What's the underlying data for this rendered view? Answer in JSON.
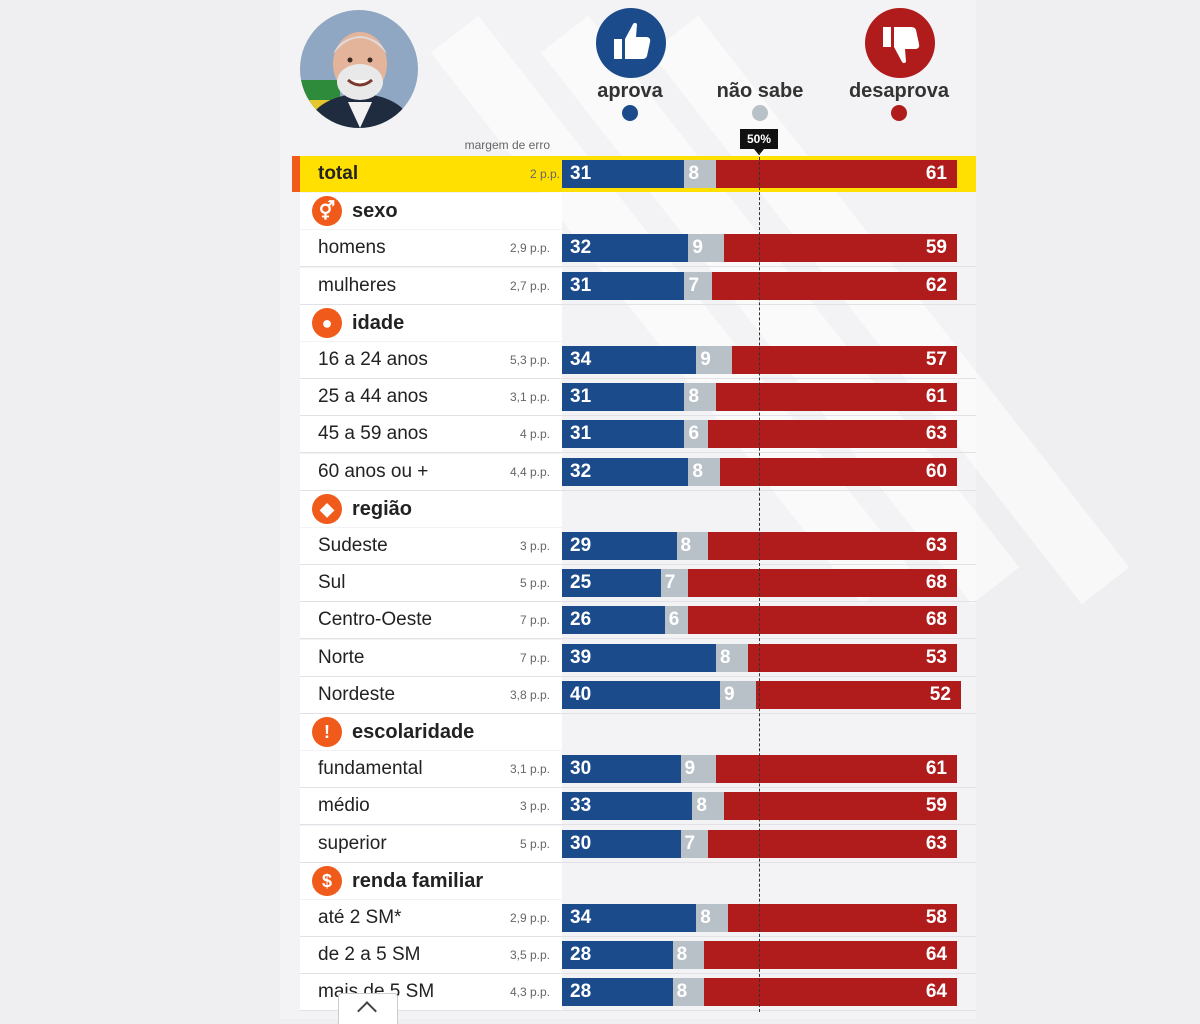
{
  "legend": {
    "approve_label": "aprova",
    "unknown_label": "não sabe",
    "disapprove_label": "desaprova"
  },
  "colors": {
    "approve": "#1c4b8c",
    "unknown": "#b9c1c8",
    "disapprove": "#b01c1c",
    "highlight": "#ffe000",
    "category_icon": "#f05a1a"
  },
  "icons": {
    "approve": "thumbs-up-icon",
    "disapprove": "thumbs-down-icon",
    "sexo": "gender-icon",
    "idade": "person-icon",
    "regiao": "brazil-map-icon",
    "escolaridade": "exclamation-icon",
    "renda": "dollar-icon"
  },
  "margin_header": "margem de erro",
  "fifty_marker": "50%",
  "chart_data": {
    "type": "bar",
    "stacked": true,
    "orientation": "horizontal",
    "reference_line": 50,
    "series_names": [
      "aprova",
      "não sabe",
      "desaprova"
    ],
    "total": {
      "label": "total",
      "moe": "2 p.p.",
      "values": [
        31,
        8,
        61
      ]
    },
    "groups": [
      {
        "name": "sexo",
        "rows": [
          {
            "label": "homens",
            "moe": "2,9 p.p.",
            "values": [
              32,
              9,
              59
            ]
          },
          {
            "label": "mulheres",
            "moe": "2,7 p.p.",
            "values": [
              31,
              7,
              62
            ]
          }
        ]
      },
      {
        "name": "idade",
        "rows": [
          {
            "label": "16 a 24 anos",
            "moe": "5,3 p.p.",
            "values": [
              34,
              9,
              57
            ]
          },
          {
            "label": "25 a 44 anos",
            "moe": "3,1 p.p.",
            "values": [
              31,
              8,
              61
            ]
          },
          {
            "label": "45 a 59 anos",
            "moe": "4 p.p.",
            "values": [
              31,
              6,
              63
            ]
          },
          {
            "label": "60 anos ou +",
            "moe": "4,4 p.p.",
            "values": [
              32,
              8,
              60
            ]
          }
        ]
      },
      {
        "name": "região",
        "rows": [
          {
            "label": "Sudeste",
            "moe": "3 p.p.",
            "values": [
              29,
              8,
              63
            ]
          },
          {
            "label": "Sul",
            "moe": "5 p.p.",
            "values": [
              25,
              7,
              68
            ]
          },
          {
            "label": "Centro-Oeste",
            "moe": "7 p.p.",
            "values": [
              26,
              6,
              68
            ]
          },
          {
            "label": "Norte",
            "moe": "7 p.p.",
            "values": [
              39,
              8,
              53
            ]
          },
          {
            "label": "Nordeste",
            "moe": "3,8 p.p.",
            "values": [
              40,
              9,
              52
            ]
          }
        ]
      },
      {
        "name": "escolaridade",
        "rows": [
          {
            "label": "fundamental",
            "moe": "3,1 p.p.",
            "values": [
              30,
              9,
              61
            ]
          },
          {
            "label": "médio",
            "moe": "3 p.p.",
            "values": [
              33,
              8,
              59
            ]
          },
          {
            "label": "superior",
            "moe": "5 p.p.",
            "values": [
              30,
              7,
              63
            ]
          }
        ]
      },
      {
        "name": "renda familiar",
        "rows": [
          {
            "label": "até 2 SM*",
            "moe": "2,9 p.p.",
            "values": [
              34,
              8,
              58
            ]
          },
          {
            "label": "de 2 a 5 SM",
            "moe": "3,5 p.p.",
            "values": [
              28,
              8,
              64
            ]
          },
          {
            "label": "mais de 5 SM",
            "moe": "4,3 p.p.",
            "values": [
              28,
              8,
              64
            ]
          }
        ]
      }
    ]
  }
}
